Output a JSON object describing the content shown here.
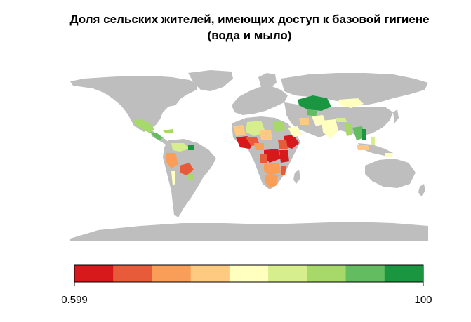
{
  "title": {
    "line1": "Доля сельских жителей, имеющих доступ к базовой гигиене",
    "line2": "(вода и мыло)"
  },
  "legend": {
    "min_label": "0.599",
    "max_label": "100",
    "colors": [
      "#d7191c",
      "#e85b3a",
      "#f99e59",
      "#fec980",
      "#ffffbf",
      "#d7ee8e",
      "#a6d96a",
      "#64bc61",
      "#1a9641"
    ]
  },
  "map_colors": {
    "no_data": "#bebebe",
    "ocean": "#ffffff"
  }
}
